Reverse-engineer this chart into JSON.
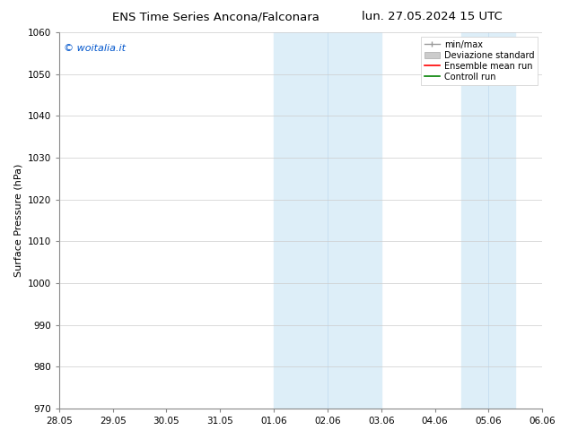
{
  "title_left": "ENS Time Series Ancona/Falconara",
  "title_right": "lun. 27.05.2024 15 UTC",
  "ylabel": "Surface Pressure (hPa)",
  "xlabel_ticks": [
    "28.05",
    "29.05",
    "30.05",
    "31.05",
    "01.06",
    "02.06",
    "03.06",
    "04.06",
    "05.06",
    "06.06"
  ],
  "ylim": [
    970,
    1060
  ],
  "yticks": [
    970,
    980,
    990,
    1000,
    1010,
    1020,
    1030,
    1040,
    1050,
    1060
  ],
  "xlim": [
    0,
    9
  ],
  "xtick_positions": [
    0,
    1,
    2,
    3,
    4,
    5,
    6,
    7,
    8,
    9
  ],
  "shaded_regions": [
    {
      "xmin": 4.0,
      "xmax": 6.0,
      "color": "#ddeef8"
    },
    {
      "xmin": 7.5,
      "xmax": 8.5,
      "color": "#ddeef8"
    }
  ],
  "shaded_inner_lines": [
    {
      "x": 5.0,
      "color": "#c5ddf0"
    },
    {
      "x": 8.0,
      "color": "#c5ddf0"
    }
  ],
  "watermark_text": "© woitalia.it",
  "watermark_color": "#0055cc",
  "legend_entries": [
    {
      "label": "min/max",
      "color": "#999999"
    },
    {
      "label": "Deviazione standard",
      "color": "#bbbbbb"
    },
    {
      "label": "Ensemble mean run",
      "color": "red"
    },
    {
      "label": "Controll run",
      "color": "green"
    }
  ],
  "bg_color": "#ffffff",
  "grid_color": "#cccccc",
  "title_fontsize": 9.5,
  "tick_fontsize": 7.5,
  "ylabel_fontsize": 8,
  "legend_fontsize": 7,
  "watermark_fontsize": 8
}
